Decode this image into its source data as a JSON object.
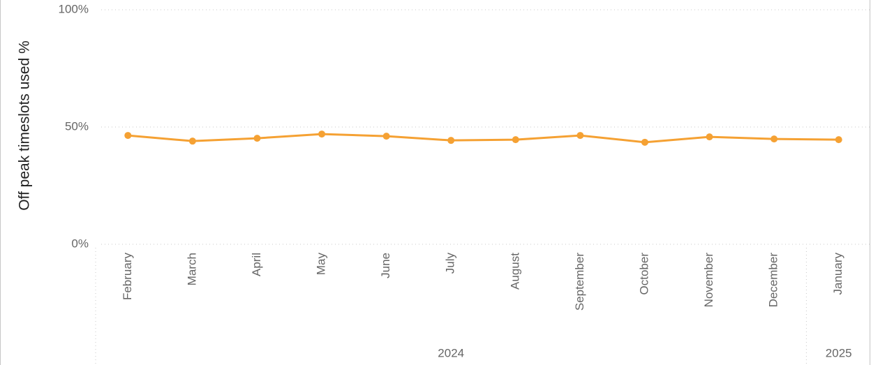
{
  "chart_data": {
    "type": "line",
    "y_label": "Off peak timeslots used %",
    "categories": [
      "February",
      "March",
      "April",
      "May",
      "June",
      "July",
      "August",
      "September",
      "October",
      "November",
      "December",
      "January"
    ],
    "x_groups": [
      {
        "label": "2024",
        "count": 11
      },
      {
        "label": "2025",
        "count": 1
      }
    ],
    "series": [
      {
        "name": "Off peak timeslots used %",
        "color": "#f5a133",
        "values": [
          46.4,
          44.0,
          45.2,
          47.0,
          46.1,
          44.3,
          44.6,
          46.4,
          43.5,
          45.8,
          44.9,
          44.6
        ]
      }
    ],
    "ylim": [
      0,
      100
    ],
    "yticks": [
      {
        "value": 0,
        "label": "0%"
      },
      {
        "value": 50,
        "label": "50%"
      },
      {
        "value": 100,
        "label": "100%"
      }
    ],
    "grid": true
  }
}
